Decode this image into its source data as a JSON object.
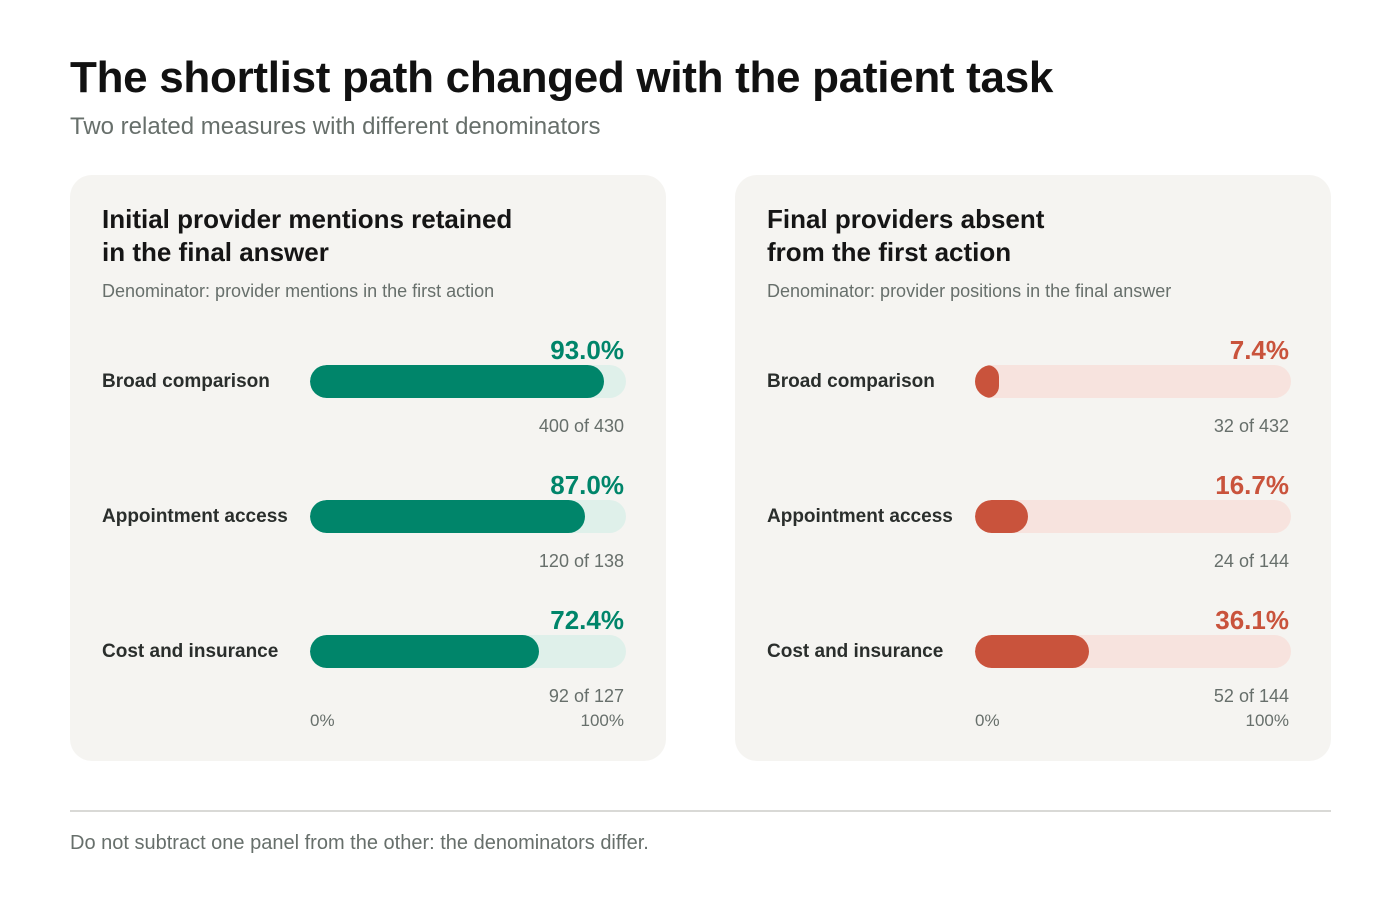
{
  "title": "The shortlist path changed with the patient task",
  "subtitle": "Two related measures with different denominators",
  "footnote": "Do not subtract one panel from the other: the denominators differ.",
  "colors": {
    "retained_fill": "#00856a",
    "retained_track": "#dff0ea",
    "absent_fill": "#c9533c",
    "absent_track": "#f7e3de"
  },
  "axis": {
    "min_label": "0%",
    "max_label": "100%"
  },
  "chart_data": [
    {
      "type": "bar",
      "orientation": "horizontal",
      "title": "Initial provider mentions retained\nin the final answer",
      "denominator": "Denominator: provider mentions in the first action",
      "color": "#00856a",
      "track_color": "#dff0ea",
      "xlim": [
        0,
        100
      ],
      "categories": [
        "Broad comparison",
        "Appointment access",
        "Cost and insurance"
      ],
      "values": [
        93.0,
        87.0,
        72.4
      ],
      "value_labels": [
        "93.0%",
        "87.0%",
        "72.4%"
      ],
      "counts": [
        "400 of 430",
        "120 of 138",
        "92 of 127"
      ],
      "axis_labels": [
        "0%",
        "100%"
      ]
    },
    {
      "type": "bar",
      "orientation": "horizontal",
      "title": "Final providers absent\nfrom the first action",
      "denominator": "Denominator: provider positions in the final answer",
      "color": "#c9533c",
      "track_color": "#f7e3de",
      "xlim": [
        0,
        100
      ],
      "categories": [
        "Broad comparison",
        "Appointment access",
        "Cost and insurance"
      ],
      "values": [
        7.4,
        16.7,
        36.1
      ],
      "value_labels": [
        "7.4%",
        "16.7%",
        "36.1%"
      ],
      "counts": [
        "32 of 432",
        "24 of 144",
        "52 of 144"
      ],
      "axis_labels": [
        "0%",
        "100%"
      ]
    }
  ]
}
